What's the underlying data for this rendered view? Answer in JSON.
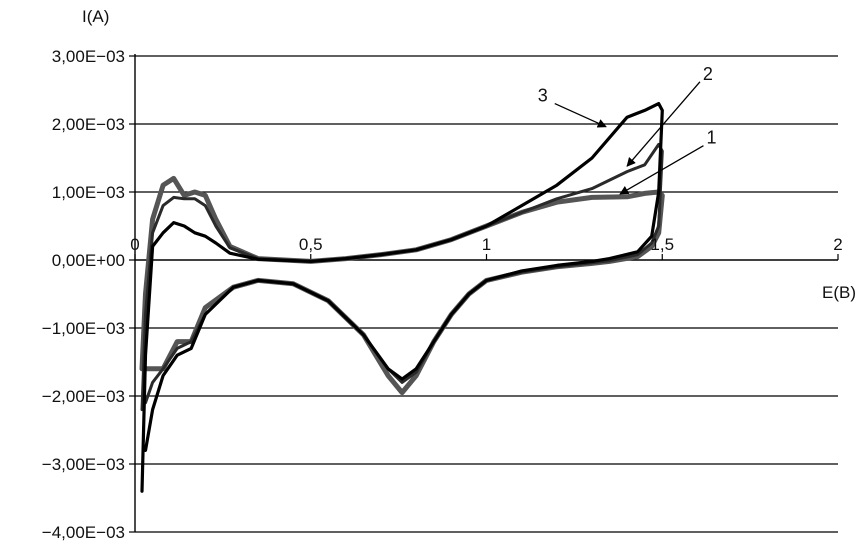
{
  "chart_data": {
    "type": "line",
    "title": "",
    "xlabel": "E(B)",
    "ylabel": "I(A)",
    "xlim": [
      0,
      2
    ],
    "ylim": [
      -0.004,
      0.003
    ],
    "grid": "horizontal",
    "x_ticks": [
      {
        "value": 0,
        "label": "0"
      },
      {
        "value": 0.5,
        "label": "0,5"
      },
      {
        "value": 1,
        "label": "1"
      },
      {
        "value": 1.5,
        "label": "1,5"
      },
      {
        "value": 2,
        "label": "2"
      }
    ],
    "y_ticks": [
      {
        "value": 0.003,
        "label": "3,00E−03"
      },
      {
        "value": 0.002,
        "label": "2,00E−03"
      },
      {
        "value": 0.001,
        "label": "1,00E−03"
      },
      {
        "value": 0,
        "label": "0,00E+00"
      },
      {
        "value": -0.001,
        "label": "−1,00E−03"
      },
      {
        "value": -0.002,
        "label": "−2,00E−03"
      },
      {
        "value": -0.003,
        "label": "−3,00E−03"
      },
      {
        "value": -0.004,
        "label": "−4,00E−03"
      }
    ],
    "series": [
      {
        "name": "1",
        "color": "#555555",
        "points": [
          [
            0.02,
            -0.0016
          ],
          [
            0.03,
            -0.0005
          ],
          [
            0.05,
            0.0006
          ],
          [
            0.08,
            0.0011
          ],
          [
            0.11,
            0.0012
          ],
          [
            0.14,
            0.00095
          ],
          [
            0.17,
            0.001
          ],
          [
            0.2,
            0.00095
          ],
          [
            0.23,
            0.0006
          ],
          [
            0.27,
            0.0002
          ],
          [
            0.35,
            2e-05
          ],
          [
            0.5,
            -2e-05
          ],
          [
            0.6,
            2e-05
          ],
          [
            0.7,
            8e-05
          ],
          [
            0.8,
            0.00015
          ],
          [
            0.9,
            0.0003
          ],
          [
            1.0,
            0.0005
          ],
          [
            1.1,
            0.0007
          ],
          [
            1.2,
            0.00085
          ],
          [
            1.3,
            0.00092
          ],
          [
            1.4,
            0.00093
          ],
          [
            1.45,
            0.00098
          ],
          [
            1.49,
            0.001
          ],
          [
            1.5,
            0.00095
          ],
          [
            1.49,
            0.0004
          ],
          [
            1.47,
            0.0002
          ],
          [
            1.43,
            5e-05
          ],
          [
            1.35,
            -2e-05
          ],
          [
            1.3,
            -5e-05
          ],
          [
            1.2,
            -0.0001
          ],
          [
            1.1,
            -0.00018
          ],
          [
            1.0,
            -0.0003
          ],
          [
            0.95,
            -0.0005
          ],
          [
            0.9,
            -0.0008
          ],
          [
            0.85,
            -0.0012
          ],
          [
            0.8,
            -0.0017
          ],
          [
            0.76,
            -0.00195
          ],
          [
            0.72,
            -0.0017
          ],
          [
            0.65,
            -0.0011
          ],
          [
            0.55,
            -0.0006
          ],
          [
            0.45,
            -0.00035
          ],
          [
            0.35,
            -0.0003
          ],
          [
            0.28,
            -0.0004
          ],
          [
            0.2,
            -0.0007
          ],
          [
            0.16,
            -0.0012
          ],
          [
            0.12,
            -0.0012
          ],
          [
            0.08,
            -0.0016
          ],
          [
            0.05,
            -0.0016
          ],
          [
            0.03,
            -0.0016
          ]
        ]
      },
      {
        "name": "2",
        "color": "#2a2a2a",
        "points": [
          [
            0.02,
            -0.0022
          ],
          [
            0.03,
            -0.0008
          ],
          [
            0.05,
            0.0004
          ],
          [
            0.08,
            0.0008
          ],
          [
            0.11,
            0.00092
          ],
          [
            0.14,
            0.0009
          ],
          [
            0.17,
            0.0009
          ],
          [
            0.2,
            0.0008
          ],
          [
            0.23,
            0.0005
          ],
          [
            0.27,
            0.00018
          ],
          [
            0.35,
            2e-05
          ],
          [
            0.5,
            -2e-05
          ],
          [
            0.6,
            2e-05
          ],
          [
            0.7,
            8e-05
          ],
          [
            0.8,
            0.00015
          ],
          [
            0.9,
            0.0003
          ],
          [
            1.0,
            0.0005
          ],
          [
            1.1,
            0.0007
          ],
          [
            1.2,
            0.0009
          ],
          [
            1.3,
            0.00105
          ],
          [
            1.4,
            0.0013
          ],
          [
            1.45,
            0.0014
          ],
          [
            1.49,
            0.0017
          ],
          [
            1.5,
            0.0016
          ],
          [
            1.49,
            0.0005
          ],
          [
            1.47,
            0.00025
          ],
          [
            1.43,
            8e-05
          ],
          [
            1.35,
            -1e-05
          ],
          [
            1.3,
            -4e-05
          ],
          [
            1.2,
            -0.0001
          ],
          [
            1.1,
            -0.00018
          ],
          [
            1.0,
            -0.0003
          ],
          [
            0.95,
            -0.0005
          ],
          [
            0.9,
            -0.0008
          ],
          [
            0.85,
            -0.0012
          ],
          [
            0.8,
            -0.00165
          ],
          [
            0.76,
            -0.0018
          ],
          [
            0.72,
            -0.0016
          ],
          [
            0.65,
            -0.0011
          ],
          [
            0.55,
            -0.0006
          ],
          [
            0.45,
            -0.00035
          ],
          [
            0.35,
            -0.0003
          ],
          [
            0.28,
            -0.0004
          ],
          [
            0.2,
            -0.0008
          ],
          [
            0.16,
            -0.0012
          ],
          [
            0.12,
            -0.0013
          ],
          [
            0.08,
            -0.0016
          ],
          [
            0.05,
            -0.0018
          ],
          [
            0.03,
            -0.0021
          ]
        ]
      },
      {
        "name": "3",
        "color": "#000000",
        "points": [
          [
            0.02,
            -0.0034
          ],
          [
            0.03,
            -0.0014
          ],
          [
            0.05,
            0.0002
          ],
          [
            0.08,
            0.0004
          ],
          [
            0.11,
            0.00055
          ],
          [
            0.14,
            0.0005
          ],
          [
            0.17,
            0.0004
          ],
          [
            0.2,
            0.00035
          ],
          [
            0.23,
            0.00025
          ],
          [
            0.27,
            0.0001
          ],
          [
            0.35,
            1e-05
          ],
          [
            0.5,
            -2e-05
          ],
          [
            0.6,
            2e-05
          ],
          [
            0.7,
            8e-05
          ],
          [
            0.8,
            0.00015
          ],
          [
            0.9,
            0.0003
          ],
          [
            1.0,
            0.0005
          ],
          [
            1.1,
            0.0008
          ],
          [
            1.2,
            0.0011
          ],
          [
            1.3,
            0.0015
          ],
          [
            1.4,
            0.0021
          ],
          [
            1.45,
            0.0022
          ],
          [
            1.49,
            0.0023
          ],
          [
            1.5,
            0.0022
          ],
          [
            1.49,
            0.001
          ],
          [
            1.47,
            0.00035
          ],
          [
            1.43,
            0.00012
          ],
          [
            1.35,
            2e-05
          ],
          [
            1.3,
            -2e-05
          ],
          [
            1.2,
            -8e-05
          ],
          [
            1.1,
            -0.00016
          ],
          [
            1.0,
            -0.0003
          ],
          [
            0.95,
            -0.0005
          ],
          [
            0.9,
            -0.0008
          ],
          [
            0.85,
            -0.0012
          ],
          [
            0.8,
            -0.0016
          ],
          [
            0.76,
            -0.00175
          ],
          [
            0.72,
            -0.0016
          ],
          [
            0.65,
            -0.0011
          ],
          [
            0.55,
            -0.0006
          ],
          [
            0.45,
            -0.00035
          ],
          [
            0.35,
            -0.0003
          ],
          [
            0.28,
            -0.0004
          ],
          [
            0.2,
            -0.0008
          ],
          [
            0.16,
            -0.0013
          ],
          [
            0.12,
            -0.0014
          ],
          [
            0.08,
            -0.0017
          ],
          [
            0.05,
            -0.0022
          ],
          [
            0.03,
            -0.0028
          ]
        ]
      }
    ],
    "annotations": [
      {
        "text": "1",
        "label_x": 1.64,
        "label_y": 0.00171,
        "arrow_x": 1.38,
        "arrow_y": 0.00097
      },
      {
        "text": "2",
        "label_x": 1.63,
        "label_y": 0.00265,
        "arrow_x": 1.4,
        "arrow_y": 0.00138
      },
      {
        "text": "3",
        "label_x": 1.16,
        "label_y": 0.00233,
        "arrow_x": 1.34,
        "arrow_y": 0.00196
      }
    ]
  }
}
